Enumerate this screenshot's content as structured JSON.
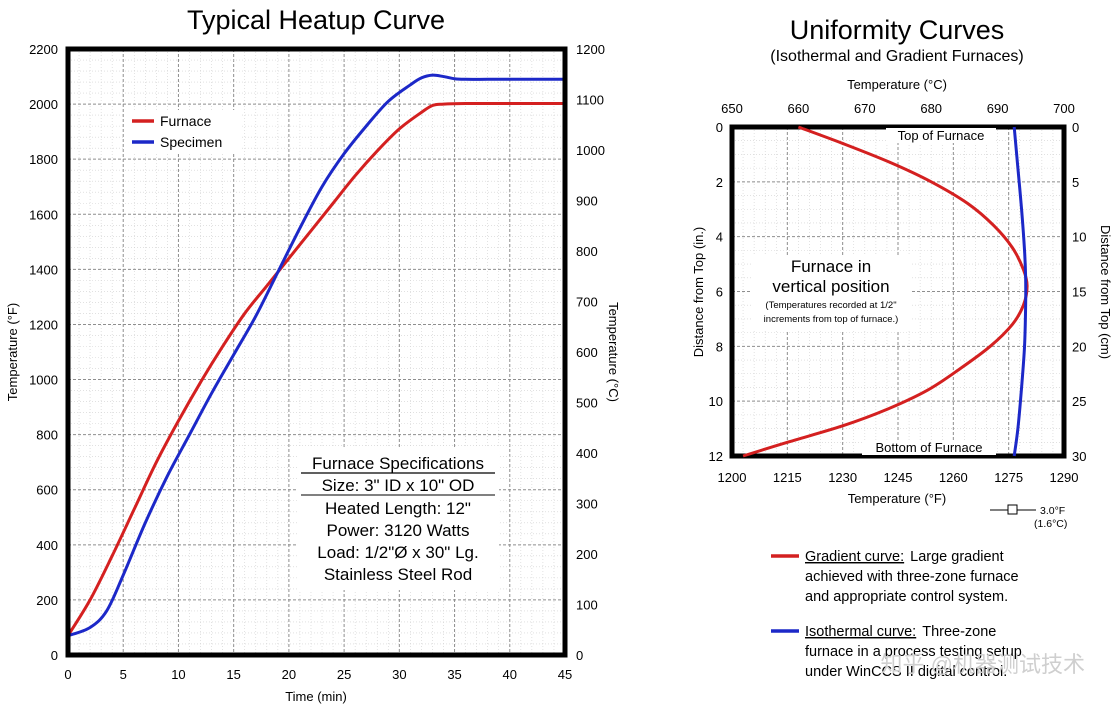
{
  "chart_data": [
    {
      "type": "line",
      "title": "Typical Heatup Curve",
      "xlabel": "Time (min)",
      "ylabel": "Temperature (°F)",
      "y2label": "Temperature (°C)",
      "xlim": [
        0,
        45
      ],
      "ylim": [
        0,
        2200
      ],
      "y2lim": [
        0,
        1200
      ],
      "x_ticks": [
        "0",
        "5",
        "10",
        "15",
        "20",
        "25",
        "30",
        "35",
        "40",
        "45"
      ],
      "y_ticks": [
        "0",
        "200",
        "400",
        "600",
        "800",
        "1000",
        "1200",
        "1400",
        "1600",
        "1800",
        "2000",
        "2200"
      ],
      "y2_ticks": [
        "0",
        "100",
        "200",
        "300",
        "400",
        "500",
        "600",
        "700",
        "800",
        "900",
        "1000",
        "1100",
        "1200"
      ],
      "grid": true,
      "legend_position": "top-left",
      "series": [
        {
          "name": "Furnace",
          "color": "#d42020",
          "x": [
            0,
            2,
            4,
            6,
            8,
            10,
            12,
            14,
            16,
            18,
            20,
            22,
            24,
            26,
            28,
            30,
            32,
            33,
            34,
            36,
            40,
            45
          ],
          "y": [
            70,
            200,
            360,
            530,
            700,
            850,
            990,
            1120,
            1240,
            1340,
            1440,
            1540,
            1640,
            1740,
            1830,
            1910,
            1970,
            1995,
            2000,
            2002,
            2002,
            2002
          ]
        },
        {
          "name": "Specimen",
          "color": "#1c28c8",
          "x": [
            0,
            2,
            3.5,
            5,
            7,
            9,
            11,
            13,
            15,
            17,
            19,
            21,
            23,
            25,
            27,
            29,
            31,
            32,
            33,
            34,
            35,
            36,
            38,
            40,
            45
          ],
          "y": [
            70,
            100,
            160,
            290,
            480,
            650,
            800,
            950,
            1090,
            1230,
            1390,
            1550,
            1700,
            1820,
            1920,
            2010,
            2070,
            2095,
            2105,
            2100,
            2092,
            2090,
            2090,
            2090,
            2090
          ]
        }
      ],
      "annotation": {
        "heading": "Furnace Specifications",
        "lines": [
          "Size: 3\" ID x 10\" OD",
          "Heated Length: 12\"",
          "Power: 3120 Watts",
          "Load: 1/2\"Ø x 30\" Lg.",
          "Stainless Steel Rod"
        ]
      }
    },
    {
      "type": "line",
      "title": "Uniformity Curves",
      "subtitle": "(Isothermal and Gradient Furnaces)",
      "x_top_label": "Temperature (°C)",
      "x_bottom_label": "Temperature (°F)",
      "y_left_label": "Distance from Top (in.)",
      "y_right_label": "Distance from Top (cm)",
      "xlim": [
        1200,
        1290
      ],
      "x_top_lim": [
        650,
        700
      ],
      "ylim": [
        0,
        12
      ],
      "y_right_lim": [
        0,
        30
      ],
      "y_reversed": true,
      "x_bottom_ticks": [
        "1200",
        "1215",
        "1230",
        "1245",
        "1260",
        "1275",
        "1290"
      ],
      "x_top_ticks": [
        "650",
        "660",
        "670",
        "680",
        "690",
        "700"
      ],
      "y_left_ticks": [
        "0",
        "2",
        "4",
        "6",
        "8",
        "10",
        "12"
      ],
      "y_right_ticks": [
        "0",
        "5",
        "10",
        "15",
        "20",
        "25",
        "30"
      ],
      "grid": true,
      "series": [
        {
          "color": "#d42020",
          "x": [
            1218,
            1230,
            1243,
            1254,
            1264,
            1271,
            1276,
            1279,
            1280,
            1279,
            1276,
            1270,
            1262,
            1253,
            1242,
            1230,
            1215,
            1203
          ],
          "y": [
            0,
            0.6,
            1.3,
            2.0,
            2.8,
            3.6,
            4.4,
            5.2,
            5.8,
            6.5,
            7.2,
            8.0,
            8.8,
            9.6,
            10.3,
            10.9,
            11.5,
            12
          ]
        },
        {
          "color": "#1c28c8",
          "x": [
            1276.5,
            1277.5,
            1278.5,
            1279.3,
            1279.6,
            1279.6,
            1279.3,
            1278.5,
            1277.5,
            1276.5
          ],
          "y": [
            0,
            1.5,
            3.0,
            4.5,
            5.5,
            6.5,
            8.0,
            9.5,
            11.0,
            12
          ]
        }
      ],
      "annotations": {
        "top": "Top of Furnace",
        "bottom": "Bottom of Furnace",
        "box_title_1": "Furnace in",
        "box_title_2": "vertical position",
        "box_note_1": "(Temperatures recorded at 1/2\"",
        "box_note_2": "increments from top of furnace.)",
        "scale_f": "3.0°F",
        "scale_c": "(1.6°C)"
      },
      "legend": [
        {
          "color": "#d42020",
          "label": "Gradient curve:",
          "text": [
            "Large gradient",
            "achieved with three-zone furnace",
            "and appropriate control system."
          ]
        },
        {
          "color": "#1c28c8",
          "label": "Isothermal curve:",
          "text": [
            "Three-zone",
            "furnace in a process testing setup",
            "under WinCCS II digital control."
          ]
        }
      ]
    }
  ],
  "watermark": "知乎 @机器测试技术"
}
